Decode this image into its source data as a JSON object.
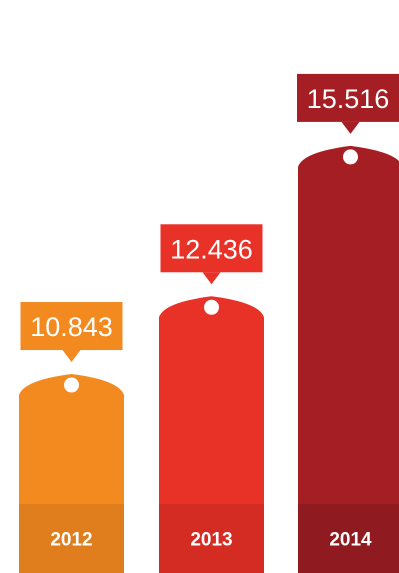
{
  "chart_data": {
    "type": "bar",
    "categories": [
      "2012",
      "2013",
      "2014"
    ],
    "values": [
      10843,
      12436,
      15516
    ],
    "value_labels": [
      "10.843",
      "12.436",
      "15.516"
    ],
    "title": "",
    "xlabel": "",
    "ylabel": "",
    "grid": false,
    "legend": "none",
    "colors": {
      "bars": [
        "#f28a20",
        "#e83228",
        "#a51e24"
      ],
      "bases": [
        "#e07d1d",
        "#d42c23",
        "#8f1a1f"
      ]
    }
  }
}
